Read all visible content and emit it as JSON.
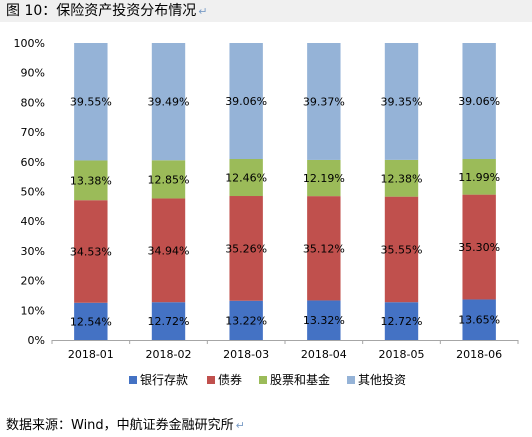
{
  "figure": {
    "title": "图 10：保险资产投资分布情况",
    "source": "数据来源：Wind，中航证券金融研究所",
    "return_mark": "↵"
  },
  "chart_data": {
    "type": "bar",
    "stacked": true,
    "categories": [
      "2018-01",
      "2018-02",
      "2018-03",
      "2018-04",
      "2018-05",
      "2018-06"
    ],
    "series": [
      {
        "name": "银行存款",
        "color": "#4472c4",
        "values": [
          12.54,
          12.72,
          13.22,
          13.32,
          12.72,
          13.65
        ],
        "labels": [
          "12.54%",
          "12.72%",
          "13.22%",
          "13.32%",
          "12.72%",
          "13.65%"
        ]
      },
      {
        "name": "债券",
        "color": "#c0504d",
        "values": [
          34.53,
          34.94,
          35.26,
          35.12,
          35.55,
          35.3
        ],
        "labels": [
          "34.53%",
          "34.94%",
          "35.26%",
          "35.12%",
          "35.55%",
          "35.30%"
        ]
      },
      {
        "name": "股票和基金",
        "color": "#9bbb59",
        "values": [
          13.38,
          12.85,
          12.46,
          12.19,
          12.38,
          11.99
        ],
        "labels": [
          "13.38%",
          "12.85%",
          "12.46%",
          "12.19%",
          "12.38%",
          "11.99%"
        ]
      },
      {
        "name": "其他投资",
        "color": "#95b3d7",
        "values": [
          39.55,
          39.49,
          39.06,
          39.37,
          39.35,
          39.06
        ],
        "labels": [
          "39.55%",
          "39.49%",
          "39.06%",
          "39.37%",
          "39.35%",
          "39.06%"
        ]
      }
    ],
    "y_ticks": [
      "0%",
      "10%",
      "20%",
      "30%",
      "40%",
      "50%",
      "60%",
      "70%",
      "80%",
      "90%",
      "100%"
    ],
    "ylim": [
      0,
      100
    ],
    "grid": false,
    "legend": "bottom"
  }
}
